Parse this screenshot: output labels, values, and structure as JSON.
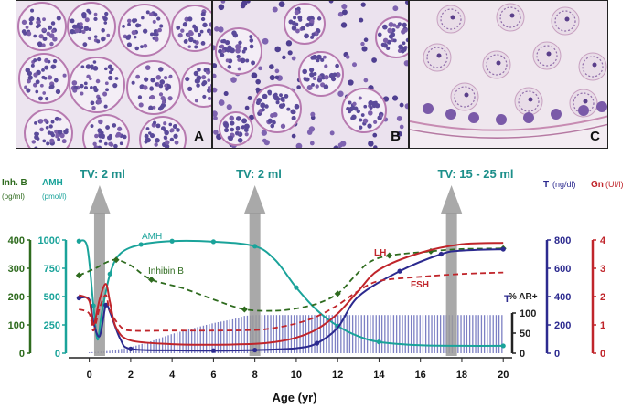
{
  "panels": [
    {
      "letter": "A"
    },
    {
      "letter": "B"
    },
    {
      "letter": "C"
    }
  ],
  "colors": {
    "amh": "#1aa39a",
    "inhibin_b": "#2e6b1e",
    "testosterone": "#2c2a8f",
    "lh": "#c0252b",
    "fsh": "#c0252b",
    "ar": "#7d80c4",
    "tv_arrow": "#9a9a9a",
    "tv_text": "#1c8f8a"
  },
  "tv_labels": [
    {
      "text": "TV: 2 ml",
      "age": 0.5
    },
    {
      "text": "TV: 2 ml",
      "age": 8
    },
    {
      "text": "TV: 15 - 25 ml",
      "age": 17.5
    }
  ],
  "chart_data": {
    "type": "line",
    "xlabel": "Age (yr)",
    "x_ticks": [
      0,
      2,
      4,
      6,
      8,
      10,
      12,
      14,
      16,
      18,
      20
    ],
    "xlim": [
      -1,
      20.3
    ],
    "axes": {
      "inhibin_b": {
        "title": "Inh. B",
        "unit": "(pg/ml)",
        "ticks": [
          0,
          100,
          200,
          300,
          400
        ],
        "range": [
          0,
          400
        ]
      },
      "amh": {
        "title": "AMH",
        "unit": "(pmol/l)",
        "ticks": [
          0,
          250,
          500,
          750,
          1000
        ],
        "range": [
          0,
          1000
        ]
      },
      "testosterone": {
        "title": "T",
        "unit": "(ng/dl)",
        "ticks": [
          0,
          200,
          400,
          600,
          800
        ],
        "range": [
          0,
          800
        ]
      },
      "gonadotropins": {
        "title": "Gn",
        "unit": "(UI/l)",
        "ticks": [
          0,
          1,
          2,
          3,
          4
        ],
        "range": [
          0,
          4
        ]
      },
      "ar": {
        "title": "% AR+",
        "ticks": [
          0,
          50,
          100
        ],
        "range": [
          0,
          100
        ]
      }
    },
    "series": [
      {
        "name": "AMH",
        "axis": "amh",
        "marker": "circle",
        "x": [
          -0.5,
          -0.1,
          0.2,
          0.4,
          0.6,
          1.0,
          1.5,
          2.5,
          4,
          6,
          8,
          9,
          10,
          11,
          12,
          13,
          14,
          16,
          18,
          20
        ],
        "y": [
          990,
          940,
          420,
          120,
          350,
          700,
          880,
          960,
          990,
          985,
          945,
          820,
          580,
          380,
          240,
          150,
          100,
          70,
          65,
          65
        ]
      },
      {
        "name": "Inhibin B",
        "axis": "inhibin_b",
        "marker": "diamond",
        "dashed": true,
        "x": [
          -0.5,
          0.3,
          0.8,
          1.3,
          2.0,
          3,
          4.5,
          6,
          7.5,
          9,
          10,
          11,
          12,
          12.8,
          13.5,
          14.5,
          16.5,
          18,
          20
        ],
        "y": [
          275,
          300,
          320,
          330,
          310,
          260,
          230,
          190,
          155,
          150,
          158,
          175,
          210,
          270,
          320,
          345,
          360,
          368,
          370
        ]
      },
      {
        "name": "T",
        "axis": "testosterone",
        "marker": "circle",
        "x": [
          -0.5,
          0.0,
          0.2,
          0.5,
          0.8,
          1.0,
          1.5,
          2,
          4,
          6,
          8,
          10,
          11,
          12,
          13,
          15,
          17,
          18,
          20
        ],
        "y": [
          390,
          380,
          220,
          120,
          340,
          290,
          100,
          30,
          20,
          18,
          22,
          35,
          70,
          180,
          400,
          580,
          700,
          725,
          735
        ]
      },
      {
        "name": "LH",
        "axis": "gonadotropins",
        "x": [
          -0.5,
          0.0,
          0.2,
          0.5,
          0.8,
          1.0,
          1.3,
          2,
          4,
          6,
          8,
          9,
          10,
          11,
          12,
          13,
          14,
          16,
          18,
          20
        ],
        "y": [
          2.05,
          1.85,
          1.0,
          1.9,
          2.45,
          1.8,
          0.9,
          0.45,
          0.32,
          0.3,
          0.33,
          0.4,
          0.55,
          0.85,
          1.4,
          2.2,
          2.95,
          3.55,
          3.85,
          3.9
        ]
      },
      {
        "name": "FSH",
        "axis": "gonadotropins",
        "dashed": true,
        "x": [
          -0.5,
          0.0,
          0.2,
          0.5,
          0.8,
          1.0,
          1.5,
          2,
          4,
          6,
          8,
          9,
          10,
          11,
          12,
          13,
          14,
          16,
          18,
          20
        ],
        "y": [
          1.55,
          1.4,
          0.8,
          1.6,
          2.05,
          1.5,
          0.95,
          0.8,
          0.8,
          0.8,
          0.82,
          0.9,
          1.05,
          1.3,
          1.7,
          2.2,
          2.55,
          2.7,
          2.8,
          2.85
        ]
      },
      {
        "name": "% AR+",
        "axis": "ar",
        "type": "bars",
        "x": [
          -1,
          0,
          1,
          2,
          3,
          4,
          5,
          6,
          7,
          7.5,
          8,
          9,
          10,
          20
        ],
        "y": [
          0,
          2,
          6,
          15,
          30,
          48,
          62,
          75,
          85,
          93,
          95,
          95,
          95,
          95
        ]
      }
    ]
  }
}
